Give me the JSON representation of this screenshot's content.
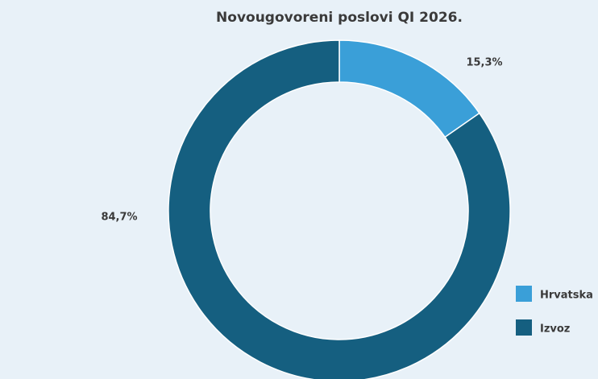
{
  "chart_data": {
    "type": "donut",
    "title": "Novougovoreni poslovi QI 2026.",
    "categories": [
      "Hrvatska",
      "Izvoz"
    ],
    "series": [
      {
        "name": "Novougovoreni poslovi",
        "values": [
          15.3,
          84.7
        ],
        "value_labels": [
          "15,3%",
          "84,7%"
        ],
        "colors": [
          "#3a9fd8",
          "#155f80"
        ]
      }
    ],
    "legend": "bottom-right"
  }
}
